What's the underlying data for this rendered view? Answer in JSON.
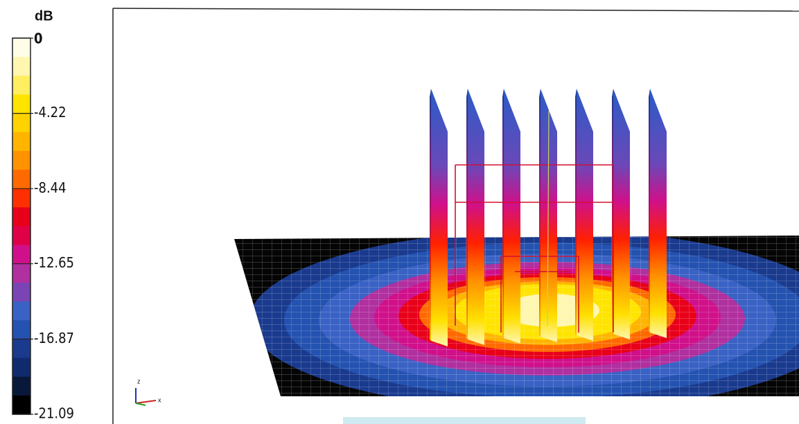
{
  "colorbar": {
    "title": "dB",
    "ticks": [
      0,
      -4.22,
      -8.44,
      -12.65,
      -16.87,
      -21.09
    ],
    "colormap": [
      "#fffde8",
      "#fff6b0",
      "#ffee60",
      "#ffe400",
      "#ffd200",
      "#ffb400",
      "#ff9200",
      "#ff6a00",
      "#ff3000",
      "#e8001a",
      "#e00048",
      "#d0108a",
      "#b030a0",
      "#7a44b4",
      "#3a62c4",
      "#2452b0",
      "#1a3a8e",
      "#102a6e",
      "#08183a",
      "#000000"
    ]
  },
  "scene": {
    "axis_z": "z",
    "axis_x": "x"
  }
}
